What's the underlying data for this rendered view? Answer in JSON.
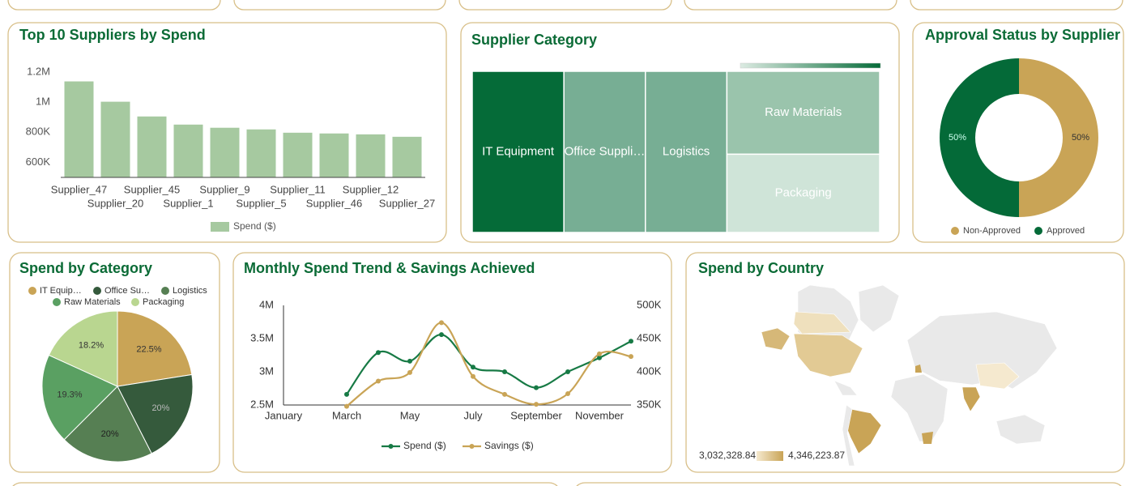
{
  "chart_data": [
    {
      "type": "bar",
      "title": "Top 10 Suppliers by Spend",
      "categories": [
        "Supplier_47",
        "Supplier_20",
        "Supplier_45",
        "Supplier_1",
        "Supplier_9",
        "Supplier_5",
        "Supplier_11",
        "Supplier_46",
        "Supplier_12",
        "Supplier_27"
      ],
      "series": [
        {
          "name": "Spend ($)",
          "color": "#a6c9a0",
          "values": [
            1138000,
            1003000,
            905000,
            851000,
            830000,
            819000,
            797000,
            792000,
            786000,
            770000
          ]
        }
      ],
      "ylim": [
        500000,
        1200000
      ],
      "yticks": [
        {
          "value": 600000,
          "label": "600K"
        },
        {
          "value": 800000,
          "label": "800K"
        },
        {
          "value": 1000000,
          "label": "1M"
        },
        {
          "value": 1200000,
          "label": "1.2M"
        }
      ]
    },
    {
      "type": "treemap",
      "title": "Supplier Category",
      "categories": [
        "IT Equipment",
        "Office Suppli…",
        "Logistics",
        "Raw Materials",
        "Packaging"
      ],
      "values": [
        22.5,
        20,
        20,
        19.3,
        18.2
      ],
      "colors": [
        "#056b38",
        "#77ae94",
        "#77ae94",
        "#9ac4ac",
        "#cfe4d8"
      ]
    },
    {
      "type": "donut",
      "title": "Approval Status by Supplier",
      "categories": [
        "Non-Approved",
        "Approved"
      ],
      "values": [
        50,
        50
      ],
      "value_labels": [
        "50%",
        "50%"
      ],
      "colors": [
        "#c9a456",
        "#046a38"
      ]
    },
    {
      "type": "pie",
      "title": "Spend by Category",
      "categories": [
        "IT Equip…",
        "Office Su…",
        "Logistics",
        "Raw Materials",
        "Packaging"
      ],
      "values": [
        22.5,
        20,
        20,
        19.3,
        18.2
      ],
      "value_labels": [
        "22.5%",
        "20%",
        "20%",
        "19.3%",
        "18.2%"
      ],
      "colors": [
        "#c9a456",
        "#355a3c",
        "#567f53",
        "#5aa062",
        "#b9d690"
      ]
    },
    {
      "type": "line",
      "title": "Monthly Spend Trend & Savings Achieved",
      "categories": [
        "January",
        null,
        "March",
        null,
        "May",
        null,
        "July",
        null,
        "September",
        null,
        "November",
        null
      ],
      "series": [
        {
          "name": "Spend ($)",
          "color": "#177a45",
          "values": [
            null,
            null,
            2660000,
            3290000,
            3160000,
            3560000,
            3070000,
            3000000,
            2760000,
            3000000,
            3210000,
            3460000
          ]
        },
        {
          "name": "Savings ($)",
          "color": "#c9a456",
          "axis": "y2",
          "values": [
            null,
            null,
            348000,
            386000,
            399000,
            474000,
            393000,
            366000,
            351000,
            367000,
            427000,
            423000
          ]
        }
      ],
      "ylim": [
        2500000,
        4000000
      ],
      "yticks": [
        {
          "value": 2500000,
          "label": "2.5M"
        },
        {
          "value": 3000000,
          "label": "3M"
        },
        {
          "value": 3500000,
          "label": "3.5M"
        },
        {
          "value": 4000000,
          "label": "4M"
        }
      ],
      "y2lim": [
        350000,
        500000
      ],
      "y2ticks": [
        {
          "value": 350000,
          "label": "350K"
        },
        {
          "value": 400000,
          "label": "400K"
        },
        {
          "value": 450000,
          "label": "450K"
        },
        {
          "value": 500000,
          "label": "500K"
        }
      ]
    },
    {
      "type": "map",
      "title": "Spend by Country",
      "colorscale": [
        {
          "value": 3032328.84,
          "label": "3,032,328.84"
        },
        {
          "value": 4346223.87,
          "label": "4,346,223.87"
        }
      ]
    }
  ]
}
